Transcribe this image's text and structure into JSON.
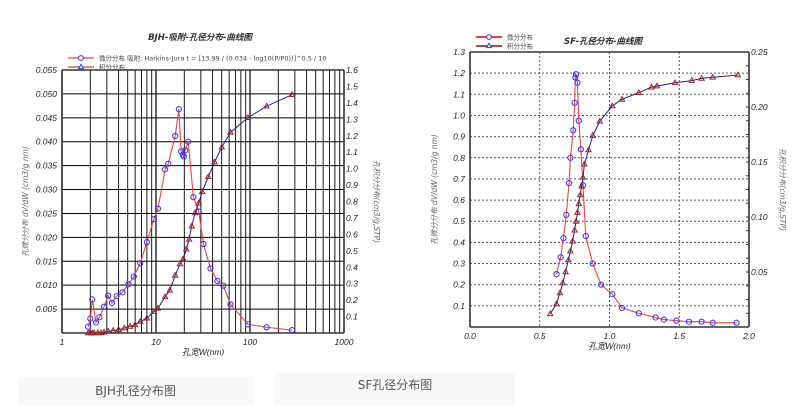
{
  "captions": {
    "bjh": "BJH孔径分布图",
    "sf": "SF孔径分布图"
  },
  "colors": {
    "differential_line": "#f04040",
    "differential_marker": "#3030ff",
    "cumulative_line": "#202090",
    "cumulative_marker": "#a02020",
    "grid": "#000000",
    "caption_bg": "#f8f8f8"
  },
  "chart_data": [
    {
      "type": "line",
      "title": "BJH-吸附-孔径分布-曲线图",
      "legend": [
        "微分分布 吸附: Harkins-Jura  t = [13.99 / (0.034 - log10(P/P0))]^0.5 / 10",
        "积分分布"
      ],
      "legend_position": "top-left",
      "xlabel": "孔宽W(nm)",
      "ylabel": "孔微分分布 dV/dW (cm3/g nm)",
      "y2label": "孔积分分布(cm3/g,STP)",
      "xscale": "log",
      "xlim": [
        1,
        1000
      ],
      "ylim": [
        0,
        0.055
      ],
      "y2lim": [
        0,
        1.6
      ],
      "xticks": [
        "1",
        "10",
        "100",
        "1000"
      ],
      "yticks": [
        "0.005",
        "0.010",
        "0.015",
        "0.020",
        "0.025",
        "0.030",
        "0.035",
        "0.040",
        "0.045",
        "0.050",
        "0.055"
      ],
      "y2ticks": [
        "0.1",
        "0.2",
        "0.3",
        "0.4",
        "0.5",
        "0.6",
        "0.7",
        "0.8",
        "0.9",
        "1.0",
        "1.1",
        "1.2",
        "1.3",
        "1.4",
        "1.5",
        "1.6"
      ],
      "grid": true,
      "series": [
        {
          "name": "微分分布",
          "axis": "left",
          "marker": "circle",
          "x": [
            1.9,
            2.0,
            2.1,
            2.3,
            2.5,
            2.8,
            3.1,
            3.4,
            3.8,
            4.4,
            5.1,
            5.8,
            6.8,
            8.0,
            9.5,
            10.5,
            12.5,
            13.5,
            16.0,
            17.5,
            18.5,
            19.3,
            19.8,
            20.5,
            22.0,
            25.0,
            28.5,
            32.0,
            38.0,
            45.0,
            52.0,
            62.0,
            95.0,
            150.0,
            280.0
          ],
          "values": [
            0.0013,
            0.003,
            0.007,
            0.0022,
            0.0033,
            0.0055,
            0.0078,
            0.0063,
            0.0077,
            0.0085,
            0.0102,
            0.0118,
            0.0146,
            0.019,
            0.0238,
            0.026,
            0.0342,
            0.0354,
            0.0412,
            0.0468,
            0.038,
            0.0373,
            0.0369,
            0.0382,
            0.04,
            0.0284,
            0.0254,
            0.0186,
            0.0135,
            0.0109,
            0.0099,
            0.006,
            0.0018,
            0.0012,
            0.0006
          ]
        },
        {
          "name": "积分分布",
          "axis": "right",
          "marker": "triangle",
          "x": [
            1.9,
            2.0,
            2.1,
            2.2,
            2.4,
            2.6,
            2.8,
            3.1,
            3.5,
            4.0,
            4.6,
            5.3,
            6.0,
            6.8,
            8.0,
            9.5,
            10.5,
            12.5,
            14.0,
            16.0,
            18.0,
            19.5,
            21.0,
            22.5,
            24.0,
            26.0,
            28.5,
            31.0,
            36.0,
            42.0,
            50.0,
            62.0,
            95.0,
            150.0,
            280.0
          ],
          "values": [
            0.0,
            0.0,
            0.0,
            0.0,
            0.0,
            0.0,
            0.005,
            0.01,
            0.015,
            0.02,
            0.03,
            0.04,
            0.05,
            0.07,
            0.09,
            0.13,
            0.15,
            0.22,
            0.26,
            0.35,
            0.42,
            0.45,
            0.51,
            0.57,
            0.65,
            0.73,
            0.79,
            0.86,
            0.95,
            1.04,
            1.13,
            1.22,
            1.31,
            1.38,
            1.45
          ]
        }
      ]
    },
    {
      "type": "line",
      "title": "SF-孔径分布-曲线图",
      "legend": [
        "微分分布",
        "积分分布"
      ],
      "legend_position": "top-left",
      "xlabel": "孔宽W(nm)",
      "ylabel": "孔微分分布 dV/dW (cm3/g nm)",
      "y2label": "孔积分分布(cm3/g,STP)",
      "xscale": "linear",
      "xlim": [
        0.0,
        2.0
      ],
      "ylim": [
        0,
        1.3
      ],
      "y2lim": [
        0,
        0.25
      ],
      "xticks": [
        "0.0",
        "0.5",
        "1.0",
        "1.5",
        "2.0"
      ],
      "yticks": [
        "0.1",
        "0.2",
        "0.3",
        "0.4",
        "0.5",
        "0.6",
        "0.7",
        "0.8",
        "0.9",
        "1.0",
        "1.1",
        "1.2",
        "1.3"
      ],
      "y2ticks": [
        "0.05",
        "0.10",
        "0.15",
        "0.20",
        "0.25"
      ],
      "grid": true,
      "grid_style": "dashed",
      "series": [
        {
          "name": "微分分布",
          "axis": "left",
          "marker": "circle",
          "x": [
            0.62,
            0.65,
            0.67,
            0.69,
            0.71,
            0.72,
            0.74,
            0.75,
            0.755,
            0.76,
            0.77,
            0.78,
            0.795,
            0.81,
            0.83,
            0.88,
            0.94,
            1.02,
            1.09,
            1.21,
            1.33,
            1.39,
            1.48,
            1.57,
            1.66,
            1.74,
            1.91
          ],
          "values": [
            0.25,
            0.33,
            0.42,
            0.53,
            0.68,
            0.8,
            0.93,
            1.06,
            1.18,
            1.195,
            1.155,
            0.975,
            0.84,
            0.67,
            0.43,
            0.3,
            0.2,
            0.155,
            0.09,
            0.065,
            0.045,
            0.035,
            0.03,
            0.025,
            0.025,
            0.02,
            0.02
          ]
        },
        {
          "name": "积分分布",
          "axis": "right",
          "marker": "triangle",
          "x": [
            0.575,
            0.62,
            0.645,
            0.665,
            0.685,
            0.705,
            0.72,
            0.735,
            0.75,
            0.76,
            0.77,
            0.78,
            0.79,
            0.8,
            0.81,
            0.82,
            0.85,
            0.88,
            0.93,
            1.02,
            1.09,
            1.21,
            1.3,
            1.34,
            1.47,
            1.59,
            1.66,
            1.74,
            1.92
          ],
          "values": [
            0.012,
            0.021,
            0.031,
            0.04,
            0.05,
            0.061,
            0.069,
            0.078,
            0.088,
            0.096,
            0.104,
            0.112,
            0.12,
            0.128,
            0.136,
            0.148,
            0.161,
            0.174,
            0.187,
            0.201,
            0.207,
            0.213,
            0.218,
            0.219,
            0.222,
            0.224,
            0.226,
            0.227,
            0.229
          ]
        }
      ]
    }
  ]
}
